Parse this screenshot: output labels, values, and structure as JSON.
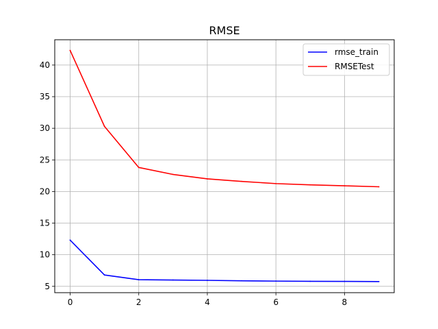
{
  "chart_data": {
    "type": "line",
    "title": "RMSE",
    "xlabel": "",
    "ylabel": "",
    "x": [
      0,
      1,
      2,
      3,
      4,
      5,
      6,
      7,
      8,
      9
    ],
    "xlim": [
      -0.45,
      9.45
    ],
    "ylim": [
      4.0,
      44.0
    ],
    "xticks": [
      0,
      2,
      4,
      6,
      8
    ],
    "yticks": [
      5,
      10,
      15,
      20,
      25,
      30,
      35,
      40
    ],
    "grid": true,
    "legend_position": "top-right",
    "series": [
      {
        "name": "rmse_train",
        "color": "#0000ff",
        "values": [
          12.3,
          6.8,
          6.05,
          6.0,
          5.95,
          5.88,
          5.83,
          5.8,
          5.78,
          5.76
        ]
      },
      {
        "name": "RMSETest",
        "color": "#ff0000",
        "values": [
          42.3,
          30.3,
          23.8,
          22.7,
          22.0,
          21.6,
          21.25,
          21.05,
          20.9,
          20.75
        ]
      }
    ]
  }
}
